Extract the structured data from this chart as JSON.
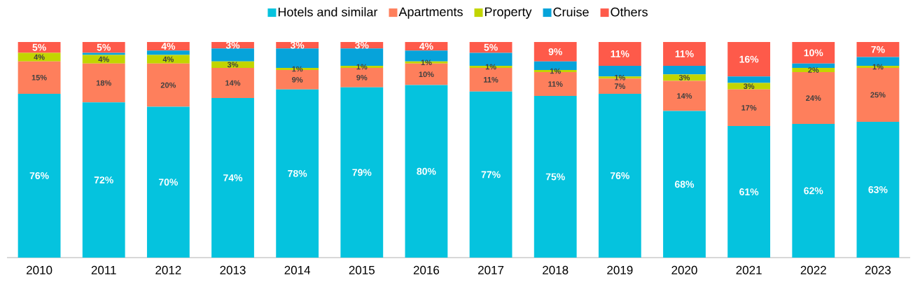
{
  "chart_data": {
    "type": "bar",
    "stacked": true,
    "legend": "top",
    "tick_labels": "x",
    "ylim": [
      0,
      100
    ],
    "categories": [
      "2010",
      "2011",
      "2012",
      "2013",
      "2014",
      "2015",
      "2016",
      "2017",
      "2018",
      "2019",
      "2020",
      "2021",
      "2022",
      "2023"
    ],
    "series": [
      {
        "name": "Hotels and similar",
        "color": "#05c3de",
        "values": [
          76,
          72,
          70,
          74,
          78,
          79,
          80,
          77,
          75,
          76,
          68,
          61,
          62,
          63
        ],
        "value_labels": [
          "76%",
          "72%",
          "70%",
          "74%",
          "78%",
          "79%",
          "80%",
          "77%",
          "75%",
          "76%",
          "68%",
          "61%",
          "62%",
          "63%"
        ]
      },
      {
        "name": "Apartments",
        "color": "#fe7f5c",
        "values": [
          15,
          18,
          20,
          14,
          9,
          9,
          10,
          11,
          11,
          7,
          14,
          17,
          24,
          25
        ],
        "value_labels": [
          "15%",
          "18%",
          "20%",
          "14%",
          "9%",
          "9%",
          "10%",
          "11%",
          "11%",
          "7%",
          "14%",
          "17%",
          "24%",
          "25%"
        ]
      },
      {
        "name": "Property",
        "color": "#c2d500",
        "values": [
          4,
          4,
          4,
          3,
          1,
          1,
          1,
          1,
          1,
          1,
          3,
          3,
          2,
          1
        ],
        "value_labels": [
          "4%",
          "4%",
          "4%",
          "3%",
          "1%",
          "1%",
          "1%",
          "1%",
          "1%",
          "1%",
          "3%",
          "3%",
          "2%",
          "1%"
        ]
      },
      {
        "name": "Cruise",
        "color": "#06a3da",
        "values": [
          0,
          1,
          2,
          6,
          9,
          8,
          5,
          6,
          4,
          5,
          4,
          3,
          2,
          4
        ],
        "value_labels": [
          null,
          null,
          null,
          null,
          null,
          null,
          null,
          null,
          null,
          null,
          null,
          null,
          null,
          null
        ]
      },
      {
        "name": "Others",
        "color": "#fe5a4a",
        "values": [
          5,
          5,
          4,
          3,
          3,
          3,
          4,
          5,
          9,
          11,
          11,
          16,
          10,
          7
        ],
        "value_labels": [
          "5%",
          "5%",
          "4%",
          "3%",
          "3%",
          "3%",
          "4%",
          "5%",
          "9%",
          "11%",
          "11%",
          "16%",
          "10%",
          "7%"
        ]
      }
    ]
  }
}
